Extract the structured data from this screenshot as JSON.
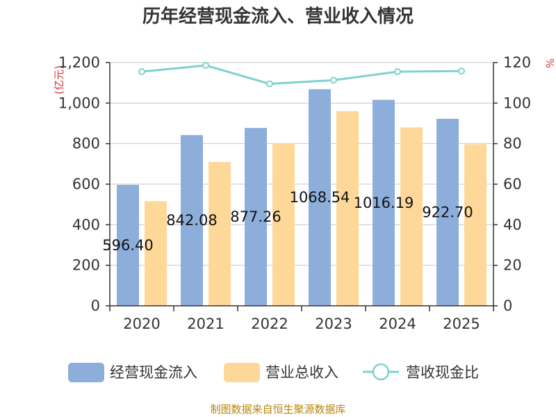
{
  "chart_data": {
    "type": "bar",
    "title": "历年经营现金流入、营业收入情况",
    "categories": [
      "2020",
      "2021",
      "2022",
      "2023",
      "2024",
      "2025"
    ],
    "series": [
      {
        "name": "经营现金流入",
        "kind": "bar",
        "axis": "left",
        "color": "#8daedb",
        "values": [
          596.4,
          842.08,
          877.26,
          1068.54,
          1016.19,
          922.7
        ],
        "labels": [
          "596.40",
          "842.08",
          "877.26",
          "1068.54",
          "1016.19",
          "922.70"
        ]
      },
      {
        "name": "营业总收入",
        "kind": "bar",
        "axis": "left",
        "color": "#fed898",
        "values": [
          516,
          710,
          801,
          960,
          880,
          797
        ]
      },
      {
        "name": "营收现金比",
        "kind": "line",
        "axis": "right",
        "color": "#7fd1d1",
        "values": [
          115.5,
          118.6,
          109.5,
          111.3,
          115.5,
          115.8
        ]
      }
    ],
    "y_left": {
      "unit": "(亿元)",
      "ylim": [
        0,
        1200
      ],
      "ticks": [
        0,
        200,
        400,
        600,
        800,
        1000,
        1200
      ],
      "tick_labels": [
        "0",
        "200",
        "400",
        "600",
        "800",
        "1,000",
        "1,200"
      ]
    },
    "y_right": {
      "unit": "%",
      "ylim": [
        0,
        120
      ],
      "ticks": [
        0,
        20,
        40,
        60,
        80,
        100,
        120
      ],
      "tick_labels": [
        "0",
        "20",
        "40",
        "60",
        "80",
        "100",
        "120"
      ]
    },
    "grid": true,
    "legend_position": "bottom",
    "source": "制图数据来自恒生聚源数据库"
  }
}
